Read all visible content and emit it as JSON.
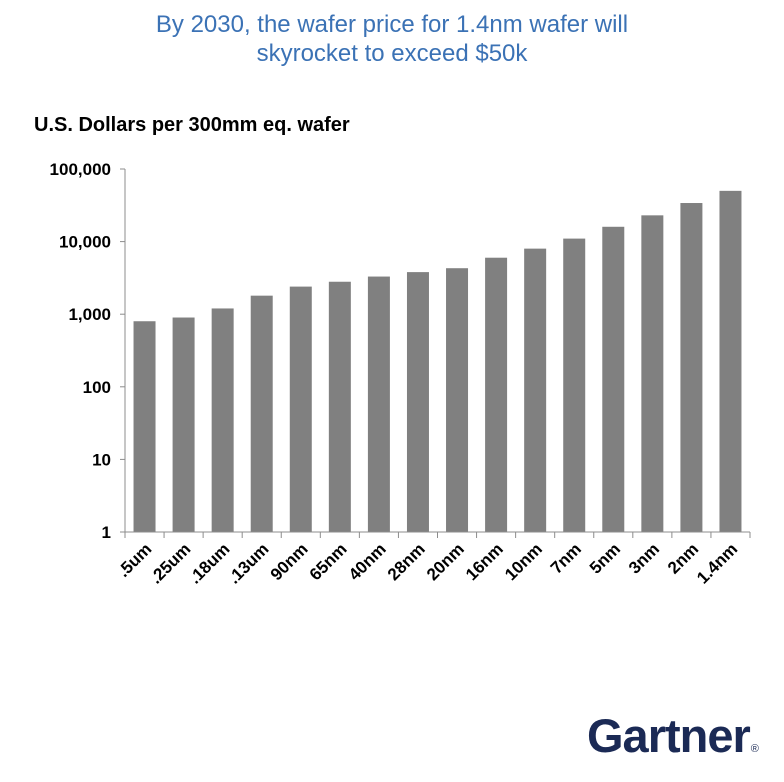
{
  "header": {
    "title_line1": "By 2030, the wafer price for 1.4nm wafer will",
    "title_line2": "skyrocket to exceed $50k"
  },
  "chart_data": {
    "type": "bar",
    "title": "By 2030, the wafer price for 1.4nm wafer will skyrocket to exceed $50k",
    "xlabel": "",
    "ylabel": "U.S. Dollars  per 300mm eq. wafer",
    "yscale": "log",
    "ylim": [
      1,
      100000
    ],
    "yticks": [
      1,
      10,
      100,
      1000,
      10000,
      100000
    ],
    "ytick_labels": [
      "1",
      "10",
      "100",
      "1,000",
      "10,000",
      "100,000"
    ],
    "grid": false,
    "legend": "none",
    "categories": [
      ".5um",
      ".25um",
      ".18um",
      ".13um",
      "90nm",
      "65nm",
      "40nm",
      "28nm",
      "20nm",
      "16nm",
      "10nm",
      "7nm",
      "5nm",
      "3nm",
      "2nm",
      "1.4nm"
    ],
    "values": [
      800,
      900,
      1200,
      1800,
      2400,
      2800,
      3300,
      3800,
      4300,
      6000,
      8000,
      11000,
      16000,
      23000,
      34000,
      50000
    ],
    "bar_color": "#808080"
  },
  "branding": {
    "logo_text": "Gartner",
    "logo_mark": "®"
  }
}
